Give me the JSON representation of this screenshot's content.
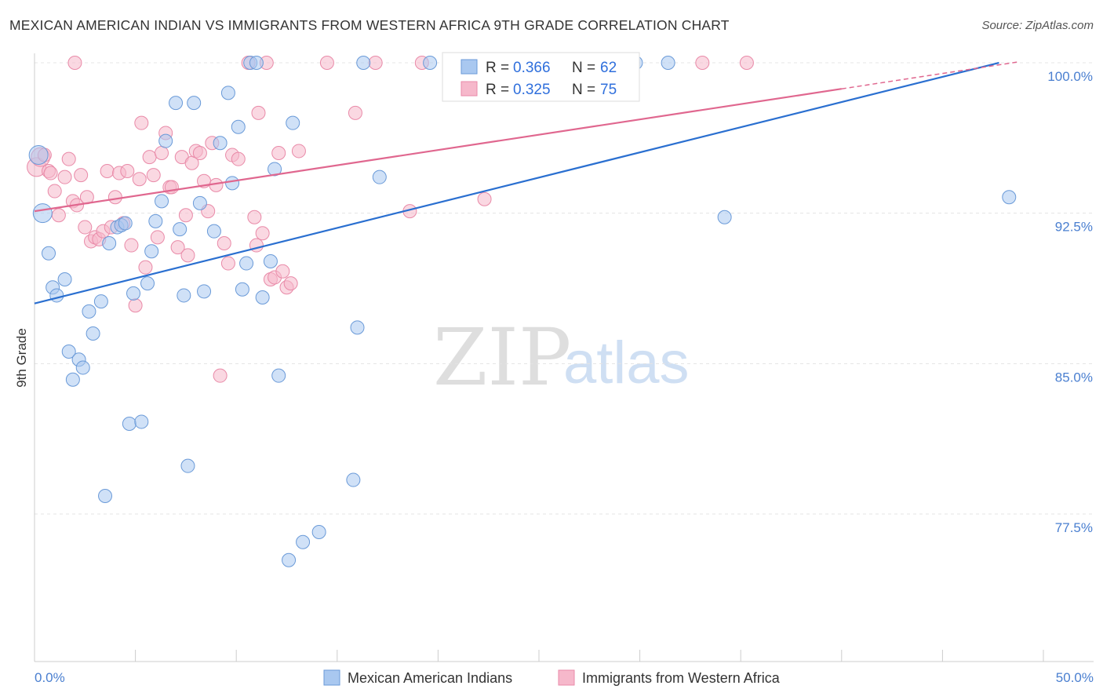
{
  "title": "MEXICAN AMERICAN INDIAN VS IMMIGRANTS FROM WESTERN AFRICA 9TH GRADE CORRELATION CHART",
  "source": "Source: ZipAtlas.com",
  "watermark": {
    "zip": "ZIP",
    "atlas": "atlas"
  },
  "legend": {
    "rows": [
      {
        "r_label": "R = ",
        "r_value": "0.366",
        "n_label": "N = ",
        "n_value": "62",
        "color": "#a9c8f0"
      },
      {
        "r_label": "R = ",
        "r_value": "0.325",
        "n_label": "N = ",
        "n_value": "75",
        "color": "#f6b8cb"
      }
    ]
  },
  "bottom_legend": [
    {
      "label": "Mexican American Indians",
      "color": "#a9c8f0"
    },
    {
      "label": "Immigrants from Western Africa",
      "color": "#f6b8cb"
    }
  ],
  "chart_data": {
    "type": "scatter",
    "title": "MEXICAN AMERICAN INDIAN VS IMMIGRANTS FROM WESTERN AFRICA 9TH GRADE CORRELATION CHART",
    "xlabel": "",
    "ylabel": "9th Grade",
    "xlim": [
      0,
      50
    ],
    "ylim": [
      71.0,
      100.8
    ],
    "x_tick_labels": [
      "0.0%",
      "50.0%"
    ],
    "y_ticks": [
      {
        "value": 100.0,
        "label": "100.0%"
      },
      {
        "value": 92.5,
        "label": "92.5%"
      },
      {
        "value": 85.0,
        "label": "85.0%"
      },
      {
        "value": 77.5,
        "label": "77.5%"
      }
    ],
    "grid": "horizontal-dashed",
    "legend_position": "top-center",
    "series": [
      {
        "name": "Mexican American Indians",
        "color": "#a9c8f0",
        "stroke": "#6a9ad8",
        "trend": {
          "x": [
            0,
            47.8
          ],
          "y": [
            88.0,
            100.0
          ],
          "color": "#2a6fd0"
        },
        "points": [
          [
            0.2,
            95.4
          ],
          [
            0.4,
            92.5
          ],
          [
            0.7,
            90.5
          ],
          [
            0.9,
            88.8
          ],
          [
            1.1,
            88.4
          ],
          [
            1.5,
            89.2
          ],
          [
            1.7,
            85.6
          ],
          [
            1.9,
            84.2
          ],
          [
            2.2,
            85.2
          ],
          [
            2.4,
            84.8
          ],
          [
            2.7,
            87.6
          ],
          [
            2.9,
            86.5
          ],
          [
            3.3,
            88.1
          ],
          [
            3.5,
            78.4
          ],
          [
            3.7,
            91.0
          ],
          [
            4.1,
            91.8
          ],
          [
            4.3,
            91.9
          ],
          [
            4.5,
            92.0
          ],
          [
            4.7,
            82.0
          ],
          [
            4.9,
            88.5
          ],
          [
            5.3,
            82.1
          ],
          [
            5.6,
            89.0
          ],
          [
            5.8,
            90.6
          ],
          [
            6.0,
            92.1
          ],
          [
            6.3,
            93.1
          ],
          [
            6.5,
            96.1
          ],
          [
            7.0,
            98.0
          ],
          [
            7.2,
            91.7
          ],
          [
            7.4,
            88.4
          ],
          [
            7.6,
            79.9
          ],
          [
            7.9,
            98.0
          ],
          [
            8.2,
            93.0
          ],
          [
            8.4,
            88.6
          ],
          [
            8.9,
            91.6
          ],
          [
            9.2,
            96.0
          ],
          [
            9.6,
            98.5
          ],
          [
            9.8,
            94.0
          ],
          [
            10.1,
            96.8
          ],
          [
            10.3,
            88.7
          ],
          [
            10.5,
            90.0
          ],
          [
            10.7,
            100.0
          ],
          [
            11.0,
            100.0
          ],
          [
            11.3,
            88.3
          ],
          [
            11.7,
            90.1
          ],
          [
            11.9,
            94.7
          ],
          [
            12.1,
            84.4
          ],
          [
            12.6,
            75.2
          ],
          [
            12.8,
            97.0
          ],
          [
            13.3,
            76.1
          ],
          [
            14.1,
            76.6
          ],
          [
            15.8,
            79.2
          ],
          [
            16.0,
            86.8
          ],
          [
            16.3,
            100.0
          ],
          [
            17.1,
            94.3
          ],
          [
            19.6,
            100.0
          ],
          [
            22.8,
            100.0
          ],
          [
            26.2,
            100.0
          ],
          [
            27.3,
            100.0
          ],
          [
            31.4,
            100.0
          ],
          [
            34.2,
            92.3
          ],
          [
            48.3,
            93.3
          ],
          [
            29.8,
            100.0
          ]
        ]
      },
      {
        "name": "Immigrants from Western Africa",
        "color": "#f6b8cb",
        "stroke": "#e98aa8",
        "trend": {
          "x": [
            0,
            40.0
          ],
          "y": [
            92.6,
            98.7
          ],
          "color": "#e0678f"
        },
        "trend_dashed": {
          "x": [
            40.0,
            48.8
          ],
          "y": [
            98.7,
            100.05
          ]
        },
        "points": [
          [
            0.1,
            94.8
          ],
          [
            0.3,
            95.3
          ],
          [
            0.5,
            95.4
          ],
          [
            0.7,
            94.6
          ],
          [
            0.8,
            94.5
          ],
          [
            1.0,
            93.6
          ],
          [
            1.2,
            92.4
          ],
          [
            1.5,
            94.3
          ],
          [
            1.7,
            95.2
          ],
          [
            1.9,
            93.1
          ],
          [
            2.1,
            92.9
          ],
          [
            2.3,
            94.4
          ],
          [
            2.5,
            91.8
          ],
          [
            2.6,
            93.3
          ],
          [
            2.8,
            91.1
          ],
          [
            3.0,
            91.3
          ],
          [
            3.2,
            91.2
          ],
          [
            3.4,
            91.6
          ],
          [
            3.6,
            94.6
          ],
          [
            3.8,
            91.8
          ],
          [
            4.0,
            93.3
          ],
          [
            4.2,
            94.5
          ],
          [
            4.4,
            92.0
          ],
          [
            4.6,
            94.6
          ],
          [
            4.8,
            90.9
          ],
          [
            5.0,
            87.9
          ],
          [
            5.2,
            94.2
          ],
          [
            5.3,
            97.0
          ],
          [
            5.5,
            89.8
          ],
          [
            5.7,
            95.3
          ],
          [
            5.9,
            94.4
          ],
          [
            6.1,
            91.3
          ],
          [
            6.3,
            95.5
          ],
          [
            6.5,
            96.5
          ],
          [
            6.7,
            93.8
          ],
          [
            6.8,
            93.8
          ],
          [
            7.1,
            90.8
          ],
          [
            7.3,
            95.3
          ],
          [
            7.5,
            92.4
          ],
          [
            7.6,
            90.4
          ],
          [
            7.8,
            95.0
          ],
          [
            8.0,
            95.6
          ],
          [
            8.2,
            95.5
          ],
          [
            8.4,
            94.1
          ],
          [
            8.6,
            92.6
          ],
          [
            8.8,
            96.0
          ],
          [
            9.0,
            93.9
          ],
          [
            9.2,
            84.4
          ],
          [
            9.4,
            91.0
          ],
          [
            9.6,
            90.0
          ],
          [
            9.8,
            95.4
          ],
          [
            10.1,
            95.2
          ],
          [
            10.6,
            100.0
          ],
          [
            10.9,
            92.3
          ],
          [
            11.0,
            90.9
          ],
          [
            11.1,
            97.5
          ],
          [
            11.3,
            91.5
          ],
          [
            11.5,
            100.0
          ],
          [
            11.7,
            89.2
          ],
          [
            11.9,
            89.3
          ],
          [
            12.1,
            95.5
          ],
          [
            12.3,
            89.6
          ],
          [
            12.5,
            88.8
          ],
          [
            12.7,
            89.0
          ],
          [
            13.1,
            95.6
          ],
          [
            14.5,
            100.0
          ],
          [
            15.9,
            97.5
          ],
          [
            16.9,
            100.0
          ],
          [
            18.6,
            92.6
          ],
          [
            19.2,
            100.0
          ],
          [
            22.3,
            93.2
          ],
          [
            27.0,
            100.0
          ],
          [
            33.1,
            100.0
          ],
          [
            35.3,
            100.0
          ],
          [
            2.0,
            100.0
          ]
        ]
      }
    ]
  }
}
